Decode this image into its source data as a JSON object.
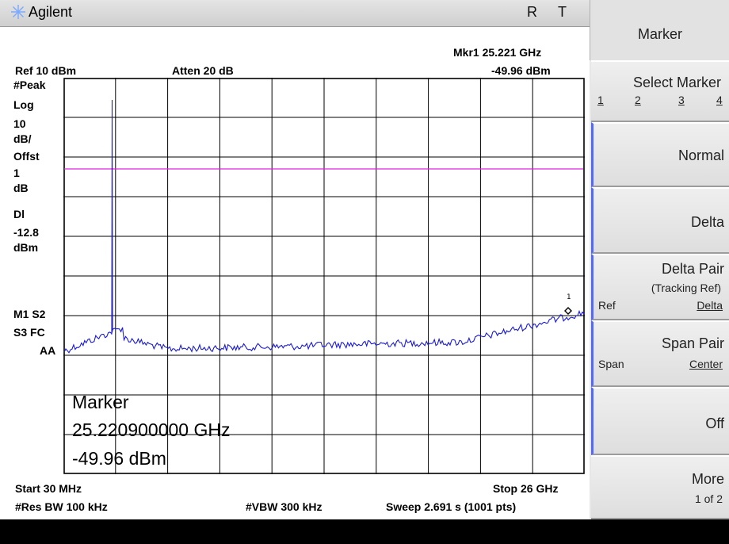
{
  "header": {
    "brand": "Agilent",
    "flag_r": "R",
    "flag_t": "T",
    "marker_readout_freq": "Mkr1 25.221 GHz",
    "marker_readout_level": "-49.96 dBm",
    "ref_level": "Ref 10 dBm",
    "attenuation": "Atten 20 dB"
  },
  "side_annotations": {
    "detector": "#Peak",
    "scale_type": "Log",
    "scale_value": "10",
    "scale_unit": "dB/",
    "offset_label": "Offst",
    "offset_value": "1",
    "offset_unit": "dB",
    "display_line_label": "Dl",
    "display_line_value": "-12.8",
    "display_line_unit": "dBm",
    "m1s2": "M1  S2",
    "s3fc": "S3  FC",
    "aa": "AA"
  },
  "marker_table": {
    "title": "Marker",
    "frequency": "25.220900000 GHz",
    "amplitude": "-49.96 dBm"
  },
  "footer": {
    "start": "Start 30 MHz",
    "stop": "Stop 26 GHz",
    "res_bw": "#Res BW 100 kHz",
    "vbw": "#VBW 300 kHz",
    "sweep": "Sweep 2.691 s (1001 pts)"
  },
  "softkeys": {
    "title": "Marker",
    "select_marker": {
      "label": "Select Marker",
      "options": [
        "1",
        "2",
        "3",
        "4"
      ],
      "selected": "1"
    },
    "normal": "Normal",
    "delta": "Delta",
    "delta_pair": {
      "label": "Delta Pair",
      "sub": "(Tracking Ref)",
      "left": "Ref",
      "right": "Delta"
    },
    "span_pair": {
      "label": "Span Pair",
      "left": "Span",
      "right": "Center"
    },
    "off": "Off",
    "more": {
      "label": "More",
      "sub": "1 of 2"
    }
  },
  "trace": {
    "marker_label": "1",
    "colors": {
      "trace": "#1a1ad8",
      "display_line": "#e020e0",
      "grid": "#000000"
    }
  }
}
